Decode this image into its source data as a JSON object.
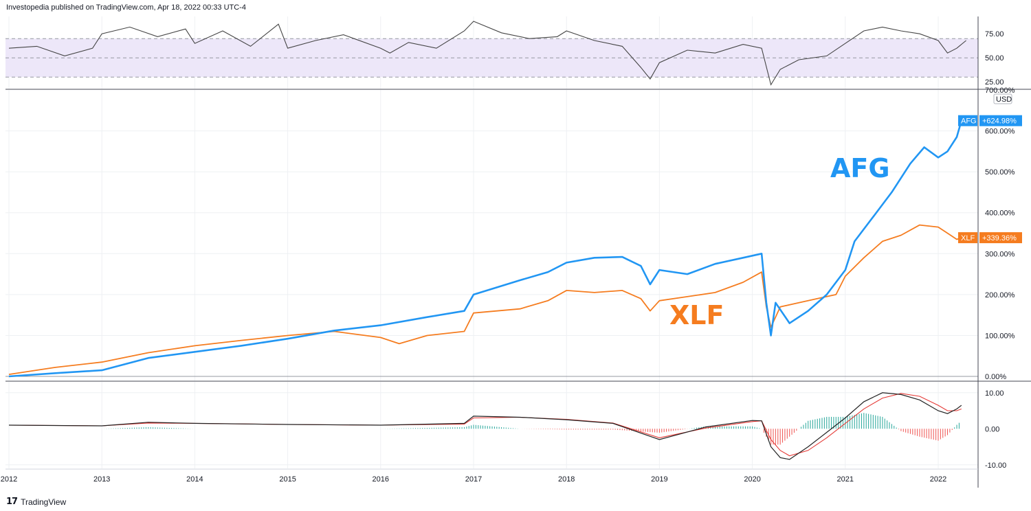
{
  "header": {
    "published": "Investopedia published on TradingView.com, Apr 18, 2022 00:33 UTC-4"
  },
  "footer": {
    "logo_text": "17",
    "brand": "TradingView"
  },
  "colors": {
    "afg": "#2196f3",
    "xlf": "#f57c1f",
    "rsi_line": "#444444",
    "rsi_band": "#ede7f9",
    "macd_line": "#222222",
    "signal_line": "#e53935",
    "hist_pos": "#26a69a",
    "hist_neg": "#ef5350"
  },
  "chart_data": [
    {
      "type": "line",
      "panel": "rsi",
      "yticks": [
        "75.00",
        "50.00",
        "25.00"
      ],
      "ylim": [
        18,
        93
      ],
      "levels": [
        70,
        50,
        30
      ],
      "series": [
        {
          "values": [
            [
              2012.0,
              60
            ],
            [
              2012.3,
              62
            ],
            [
              2012.6,
              52
            ],
            [
              2012.9,
              60
            ],
            [
              2013.0,
              75
            ],
            [
              2013.3,
              82
            ],
            [
              2013.6,
              72
            ],
            [
              2013.9,
              80
            ],
            [
              2014.0,
              65
            ],
            [
              2014.3,
              78
            ],
            [
              2014.6,
              62
            ],
            [
              2014.9,
              85
            ],
            [
              2015.0,
              60
            ],
            [
              2015.3,
              68
            ],
            [
              2015.6,
              74
            ],
            [
              2016.0,
              60
            ],
            [
              2016.1,
              55
            ],
            [
              2016.3,
              66
            ],
            [
              2016.6,
              60
            ],
            [
              2016.9,
              78
            ],
            [
              2017.0,
              88
            ],
            [
              2017.3,
              76
            ],
            [
              2017.6,
              70
            ],
            [
              2017.9,
              72
            ],
            [
              2018.0,
              78
            ],
            [
              2018.3,
              68
            ],
            [
              2018.6,
              62
            ],
            [
              2018.8,
              40
            ],
            [
              2018.9,
              28
            ],
            [
              2019.0,
              45
            ],
            [
              2019.3,
              58
            ],
            [
              2019.6,
              55
            ],
            [
              2019.9,
              64
            ],
            [
              2020.1,
              60
            ],
            [
              2020.2,
              22
            ],
            [
              2020.3,
              38
            ],
            [
              2020.5,
              48
            ],
            [
              2020.8,
              52
            ],
            [
              2021.0,
              65
            ],
            [
              2021.2,
              78
            ],
            [
              2021.4,
              82
            ],
            [
              2021.6,
              78
            ],
            [
              2021.8,
              75
            ],
            [
              2022.0,
              68
            ],
            [
              2022.1,
              55
            ],
            [
              2022.2,
              60
            ],
            [
              2022.3,
              68
            ]
          ]
        }
      ]
    },
    {
      "type": "line",
      "panel": "price",
      "ylabel": "USD",
      "yticks": [
        "700.00%",
        "600.00%",
        "500.00%",
        "400.00%",
        "300.00%",
        "200.00%",
        "100.00%",
        "0.00%"
      ],
      "ylim": [
        -10,
        700
      ],
      "series": [
        {
          "name": "AFG",
          "last_label": "+624.98%",
          "values": [
            [
              2012.0,
              0
            ],
            [
              2012.5,
              8
            ],
            [
              2013.0,
              15
            ],
            [
              2013.5,
              45
            ],
            [
              2014.0,
              60
            ],
            [
              2014.5,
              75
            ],
            [
              2015.0,
              92
            ],
            [
              2015.5,
              112
            ],
            [
              2016.0,
              125
            ],
            [
              2016.5,
              145
            ],
            [
              2016.9,
              160
            ],
            [
              2017.0,
              200
            ],
            [
              2017.5,
              235
            ],
            [
              2017.8,
              255
            ],
            [
              2018.0,
              278
            ],
            [
              2018.3,
              290
            ],
            [
              2018.6,
              292
            ],
            [
              2018.8,
              270
            ],
            [
              2018.9,
              225
            ],
            [
              2019.0,
              260
            ],
            [
              2019.3,
              250
            ],
            [
              2019.6,
              275
            ],
            [
              2019.9,
              290
            ],
            [
              2020.1,
              300
            ],
            [
              2020.15,
              180
            ],
            [
              2020.2,
              100
            ],
            [
              2020.25,
              180
            ],
            [
              2020.4,
              130
            ],
            [
              2020.6,
              160
            ],
            [
              2020.8,
              200
            ],
            [
              2021.0,
              260
            ],
            [
              2021.1,
              330
            ],
            [
              2021.3,
              390
            ],
            [
              2021.5,
              450
            ],
            [
              2021.7,
              520
            ],
            [
              2021.85,
              560
            ],
            [
              2022.0,
              535
            ],
            [
              2022.1,
              550
            ],
            [
              2022.2,
              585
            ],
            [
              2022.25,
              625
            ]
          ]
        },
        {
          "name": "XLF",
          "last_label": "+339.36%",
          "values": [
            [
              2012.0,
              5
            ],
            [
              2012.5,
              22
            ],
            [
              2013.0,
              35
            ],
            [
              2013.5,
              58
            ],
            [
              2014.0,
              75
            ],
            [
              2014.5,
              88
            ],
            [
              2015.0,
              100
            ],
            [
              2015.5,
              110
            ],
            [
              2016.0,
              95
            ],
            [
              2016.2,
              80
            ],
            [
              2016.5,
              100
            ],
            [
              2016.9,
              110
            ],
            [
              2017.0,
              155
            ],
            [
              2017.5,
              165
            ],
            [
              2017.8,
              185
            ],
            [
              2018.0,
              210
            ],
            [
              2018.3,
              205
            ],
            [
              2018.6,
              210
            ],
            [
              2018.8,
              190
            ],
            [
              2018.9,
              160
            ],
            [
              2019.0,
              185
            ],
            [
              2019.3,
              195
            ],
            [
              2019.6,
              205
            ],
            [
              2019.9,
              230
            ],
            [
              2020.1,
              255
            ],
            [
              2020.15,
              170
            ],
            [
              2020.2,
              120
            ],
            [
              2020.3,
              170
            ],
            [
              2020.5,
              180
            ],
            [
              2020.7,
              190
            ],
            [
              2020.9,
              200
            ],
            [
              2021.0,
              245
            ],
            [
              2021.2,
              290
            ],
            [
              2021.4,
              330
            ],
            [
              2021.6,
              345
            ],
            [
              2021.8,
              370
            ],
            [
              2022.0,
              365
            ],
            [
              2022.1,
              350
            ],
            [
              2022.2,
              335
            ],
            [
              2022.25,
              339
            ]
          ]
        }
      ],
      "annotations": [
        "AFG",
        "XLF"
      ]
    },
    {
      "type": "line",
      "panel": "macd",
      "yticks": [
        "10.00",
        "0.00",
        "-10.00"
      ],
      "ylim": [
        -11,
        13
      ],
      "xticks": [
        "2012",
        "2013",
        "2014",
        "2015",
        "2016",
        "2017",
        "2018",
        "2019",
        "2020",
        "2021",
        "2022"
      ],
      "series": [
        {
          "values": [
            [
              2012.0,
              1
            ],
            [
              2013.0,
              0.8
            ],
            [
              2013.5,
              1.8
            ],
            [
              2014.0,
              1.5
            ],
            [
              2015.0,
              1.2
            ],
            [
              2016.0,
              1.0
            ],
            [
              2016.9,
              1.5
            ],
            [
              2017.0,
              3.5
            ],
            [
              2017.5,
              3.2
            ],
            [
              2018.0,
              2.5
            ],
            [
              2018.5,
              1.5
            ],
            [
              2019.0,
              -3.0
            ],
            [
              2019.5,
              0.5
            ],
            [
              2020.0,
              2.3
            ],
            [
              2020.1,
              2.2
            ],
            [
              2020.2,
              -5.0
            ],
            [
              2020.3,
              -8.0
            ],
            [
              2020.4,
              -8.5
            ],
            [
              2020.6,
              -5.0
            ],
            [
              2020.8,
              -1.0
            ],
            [
              2021.0,
              3.0
            ],
            [
              2021.2,
              7.5
            ],
            [
              2021.4,
              10.0
            ],
            [
              2021.6,
              9.5
            ],
            [
              2021.8,
              8.0
            ],
            [
              2022.0,
              5.0
            ],
            [
              2022.1,
              4.2
            ],
            [
              2022.2,
              5.5
            ],
            [
              2022.25,
              6.5
            ]
          ]
        },
        {
          "values": [
            [
              2012.0,
              1
            ],
            [
              2013.0,
              0.8
            ],
            [
              2013.5,
              1.6
            ],
            [
              2014.0,
              1.5
            ],
            [
              2015.0,
              1.2
            ],
            [
              2016.0,
              1.0
            ],
            [
              2016.9,
              1.3
            ],
            [
              2017.0,
              3.0
            ],
            [
              2017.5,
              3.2
            ],
            [
              2018.0,
              2.6
            ],
            [
              2018.5,
              1.6
            ],
            [
              2019.0,
              -2.5
            ],
            [
              2019.5,
              0.2
            ],
            [
              2020.0,
              2.0
            ],
            [
              2020.1,
              2.2
            ],
            [
              2020.2,
              -3.0
            ],
            [
              2020.3,
              -6.0
            ],
            [
              2020.4,
              -7.5
            ],
            [
              2020.6,
              -6.0
            ],
            [
              2020.8,
              -2.5
            ],
            [
              2021.0,
              1.5
            ],
            [
              2021.2,
              5.5
            ],
            [
              2021.4,
              8.5
            ],
            [
              2021.6,
              9.8
            ],
            [
              2021.8,
              9.0
            ],
            [
              2022.0,
              6.5
            ],
            [
              2022.1,
              5.0
            ],
            [
              2022.2,
              5.0
            ],
            [
              2022.25,
              5.5
            ]
          ]
        }
      ]
    }
  ]
}
